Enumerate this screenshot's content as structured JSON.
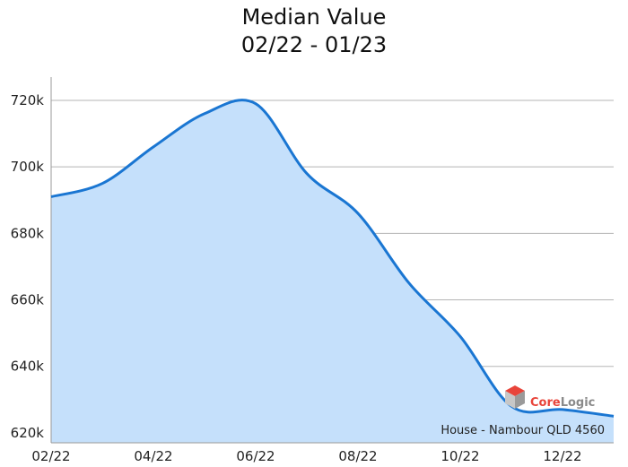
{
  "chart_data": {
    "type": "area",
    "title": "Median Value",
    "subtitle": "02/22 - 01/23",
    "xlabel": "",
    "ylabel": "",
    "x": [
      "2022-02",
      "2022-03",
      "2022-04",
      "2022-05",
      "2022-06",
      "2022-07",
      "2022-08",
      "2022-09",
      "2022-10",
      "2022-11",
      "2022-12",
      "2023-01"
    ],
    "values": [
      691000,
      695000,
      706000,
      716000,
      719000,
      698000,
      686000,
      665000,
      649000,
      628000,
      627000,
      625000
    ],
    "x_tick_labels": [
      "02/22",
      "04/22",
      "06/22",
      "08/22",
      "10/22",
      "12/22"
    ],
    "y_tick_labels": [
      "620k",
      "640k",
      "660k",
      "680k",
      "700k",
      "720k"
    ],
    "y_ticks": [
      620000,
      640000,
      660000,
      680000,
      700000,
      720000
    ],
    "ylim": [
      617000,
      727000
    ],
    "grid": "horizontal",
    "legend": "none",
    "annotation": "House - Nambour QLD 4560",
    "line_color": "#1a76d2",
    "fill_color": "#c5e0fb",
    "grid_color": "#b5b5b5"
  },
  "watermark": {
    "brand": "CoreLogic",
    "brand_part1": "Core",
    "brand_part2": "Logic",
    "color1": "#e8443a",
    "color2": "#8a8a8a"
  }
}
